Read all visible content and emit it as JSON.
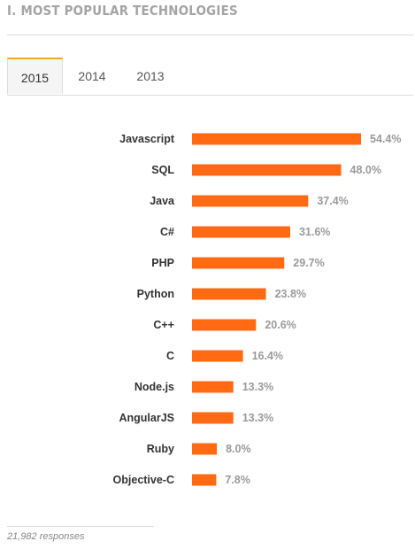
{
  "header": {
    "title": "I. MOST POPULAR TECHNOLOGIES"
  },
  "tabs": [
    {
      "label": "2015",
      "active": true
    },
    {
      "label": "2014",
      "active": false
    },
    {
      "label": "2013",
      "active": false
    }
  ],
  "chart_data": {
    "type": "bar",
    "orientation": "horizontal",
    "title": "",
    "categories": [
      "Javascript",
      "SQL",
      "Java",
      "C#",
      "PHP",
      "Python",
      "C++",
      "C",
      "Node.js",
      "AngularJS",
      "Ruby",
      "Objective-C"
    ],
    "values": [
      54.4,
      48.0,
      37.4,
      31.6,
      29.7,
      23.8,
      20.6,
      16.4,
      13.3,
      13.3,
      8.0,
      7.8
    ],
    "value_labels": [
      "54.4%",
      "48.0%",
      "37.4%",
      "31.6%",
      "29.7%",
      "23.8%",
      "20.6%",
      "16.4%",
      "13.3%",
      "13.3%",
      "8.0%",
      "7.8%"
    ],
    "unit": "%",
    "xlim": [
      0,
      60
    ],
    "grid": false,
    "legend": "none",
    "bar_color": "#ff6a13",
    "label_color": "#333333",
    "value_color": "#9a9a9a"
  },
  "footer": {
    "responses": "21,982 responses"
  }
}
